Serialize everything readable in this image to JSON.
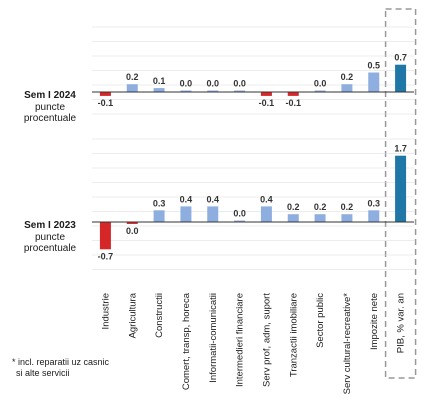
{
  "chart_data": {
    "type": "bar",
    "categories": [
      "Industrie",
      "Agricultura",
      "Constructii",
      "Comert, transp, horeca",
      "Informatii-comunicatii",
      "Intermedieri financiare",
      "Serv prof, adm, suport",
      "Tranzactii imobiliare",
      "Sector public",
      "Serv cultural-recreative*",
      "Impozite nete",
      "PIB, % var. an"
    ],
    "panels": [
      {
        "title": "Sem I 2024",
        "subtitle": [
          "puncte",
          "procentuale"
        ],
        "values": [
          -0.1,
          0.2,
          0.1,
          0.0,
          0.0,
          0.0,
          -0.1,
          -0.1,
          0.0,
          0.2,
          0.5,
          0.7
        ],
        "labels": [
          "-0.1",
          "0.2",
          "0.1",
          "0.0",
          "0.0",
          "0.0",
          "-0.1",
          "-0.1",
          "0.0",
          "0.2",
          "0.5",
          "0.7"
        ]
      },
      {
        "title": "Sem I 2023",
        "subtitle": [
          "puncte",
          "procentuale"
        ],
        "values": [
          -0.7,
          -0.05,
          0.3,
          0.4,
          0.4,
          0.0,
          0.4,
          0.2,
          0.2,
          0.2,
          0.3,
          1.7
        ],
        "labels": [
          "-0.7",
          "0.0",
          "0.3",
          "0.4",
          "0.4",
          "0.0",
          "0.4",
          "0.2",
          "0.2",
          "0.2",
          "0.3",
          "1.7"
        ]
      }
    ],
    "footnote": [
      "* incl. reparatii uz casnic",
      "si alte servicii"
    ],
    "colors": {
      "positive": "#8eaee0",
      "negative": "#d62728",
      "total": "#1f77a8",
      "grid": "#d9d9d9",
      "axis": "#333333",
      "highlight_box": "#999999"
    }
  }
}
